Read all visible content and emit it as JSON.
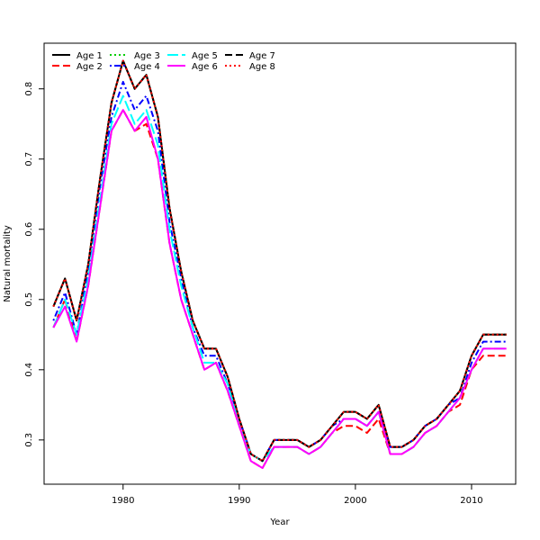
{
  "chart_data": {
    "type": "line",
    "title": "",
    "xlabel": "Year",
    "ylabel": "Natural mortality",
    "xlim": [
      1973.2,
      2013.8
    ],
    "ylim": [
      0.237,
      0.865
    ],
    "x_ticks": [
      1980,
      1990,
      2000,
      2010
    ],
    "y_ticks": [
      0.3,
      0.4,
      0.5,
      0.6,
      0.7,
      0.8
    ],
    "grid": false,
    "legend_position": "top-left",
    "x": [
      1974,
      1975,
      1976,
      1977,
      1978,
      1979,
      1980,
      1981,
      1982,
      1983,
      1984,
      1985,
      1986,
      1987,
      1988,
      1989,
      1990,
      1991,
      1992,
      1993,
      1994,
      1995,
      1996,
      1997,
      1998,
      1999,
      2000,
      2001,
      2002,
      2003,
      2004,
      2005,
      2006,
      2007,
      2008,
      2009,
      2010,
      2011,
      2012,
      2013
    ],
    "series": [
      {
        "name": "Age 1",
        "color": "#000000",
        "dash": "solid",
        "values": [
          0.49,
          0.53,
          0.47,
          0.55,
          0.67,
          0.78,
          0.84,
          0.8,
          0.82,
          0.76,
          0.63,
          0.54,
          0.47,
          0.43,
          0.43,
          0.39,
          0.33,
          0.28,
          0.27,
          0.3,
          0.3,
          0.3,
          0.29,
          0.3,
          0.32,
          0.34,
          0.34,
          0.33,
          0.35,
          0.29,
          0.29,
          0.3,
          0.32,
          0.33,
          0.35,
          0.37,
          0.42,
          0.45,
          0.45,
          0.45
        ]
      },
      {
        "name": "Age 2",
        "color": "#ff0000",
        "dash": "dashed",
        "values": [
          0.46,
          0.5,
          0.44,
          0.52,
          0.63,
          0.74,
          0.77,
          0.74,
          0.75,
          0.7,
          0.58,
          0.5,
          0.45,
          0.4,
          0.41,
          0.37,
          0.32,
          0.27,
          0.26,
          0.29,
          0.29,
          0.29,
          0.28,
          0.29,
          0.31,
          0.32,
          0.32,
          0.31,
          0.33,
          0.28,
          0.28,
          0.29,
          0.31,
          0.32,
          0.34,
          0.35,
          0.4,
          0.42,
          0.42,
          0.42
        ]
      },
      {
        "name": "Age 3",
        "color": "#00cd00",
        "dash": "dotted",
        "values": [
          0.49,
          0.53,
          0.47,
          0.55,
          0.67,
          0.78,
          0.84,
          0.8,
          0.82,
          0.76,
          0.63,
          0.54,
          0.47,
          0.43,
          0.43,
          0.39,
          0.33,
          0.28,
          0.27,
          0.3,
          0.3,
          0.3,
          0.29,
          0.3,
          0.32,
          0.34,
          0.34,
          0.33,
          0.35,
          0.29,
          0.29,
          0.3,
          0.32,
          0.33,
          0.35,
          0.37,
          0.42,
          0.45,
          0.45,
          0.45
        ]
      },
      {
        "name": "Age 4",
        "color": "#0000ff",
        "dash": "dotdash",
        "values": [
          0.47,
          0.51,
          0.45,
          0.54,
          0.66,
          0.76,
          0.81,
          0.77,
          0.79,
          0.74,
          0.61,
          0.53,
          0.46,
          0.42,
          0.42,
          0.38,
          0.33,
          0.28,
          0.27,
          0.3,
          0.3,
          0.3,
          0.29,
          0.3,
          0.32,
          0.33,
          0.33,
          0.32,
          0.34,
          0.29,
          0.29,
          0.3,
          0.32,
          0.33,
          0.35,
          0.36,
          0.41,
          0.44,
          0.44,
          0.44
        ]
      },
      {
        "name": "Age 5",
        "color": "#00ffff",
        "dash": "longdash",
        "values": [
          0.46,
          0.5,
          0.45,
          0.53,
          0.64,
          0.75,
          0.79,
          0.75,
          0.77,
          0.72,
          0.6,
          0.52,
          0.46,
          0.41,
          0.41,
          0.38,
          0.32,
          0.28,
          0.27,
          0.29,
          0.29,
          0.29,
          0.28,
          0.29,
          0.31,
          0.33,
          0.33,
          0.32,
          0.34,
          0.28,
          0.28,
          0.29,
          0.31,
          0.32,
          0.34,
          0.36,
          0.4,
          0.43,
          0.43,
          0.43
        ]
      },
      {
        "name": "Age 6",
        "color": "#ff00ff",
        "dash": "solid",
        "values": [
          0.46,
          0.49,
          0.44,
          0.52,
          0.63,
          0.74,
          0.77,
          0.74,
          0.76,
          0.7,
          0.58,
          0.5,
          0.45,
          0.4,
          0.41,
          0.37,
          0.32,
          0.27,
          0.26,
          0.29,
          0.29,
          0.29,
          0.28,
          0.29,
          0.31,
          0.33,
          0.33,
          0.32,
          0.34,
          0.28,
          0.28,
          0.29,
          0.31,
          0.32,
          0.34,
          0.36,
          0.4,
          0.43,
          0.43,
          0.43
        ]
      },
      {
        "name": "Age 7",
        "color": "#000000",
        "dash": "dashed",
        "values": [
          0.49,
          0.53,
          0.47,
          0.55,
          0.67,
          0.78,
          0.84,
          0.8,
          0.82,
          0.76,
          0.63,
          0.54,
          0.47,
          0.43,
          0.43,
          0.39,
          0.33,
          0.28,
          0.27,
          0.3,
          0.3,
          0.3,
          0.29,
          0.3,
          0.32,
          0.34,
          0.34,
          0.33,
          0.35,
          0.29,
          0.29,
          0.3,
          0.32,
          0.33,
          0.35,
          0.37,
          0.42,
          0.45,
          0.45,
          0.45
        ]
      },
      {
        "name": "Age 8",
        "color": "#ff0000",
        "dash": "dotted",
        "values": [
          0.49,
          0.53,
          0.47,
          0.55,
          0.67,
          0.78,
          0.84,
          0.8,
          0.82,
          0.76,
          0.63,
          0.54,
          0.47,
          0.43,
          0.43,
          0.39,
          0.33,
          0.28,
          0.27,
          0.3,
          0.3,
          0.3,
          0.29,
          0.3,
          0.32,
          0.34,
          0.34,
          0.33,
          0.35,
          0.29,
          0.29,
          0.3,
          0.32,
          0.33,
          0.35,
          0.37,
          0.42,
          0.45,
          0.45,
          0.45
        ]
      }
    ]
  }
}
